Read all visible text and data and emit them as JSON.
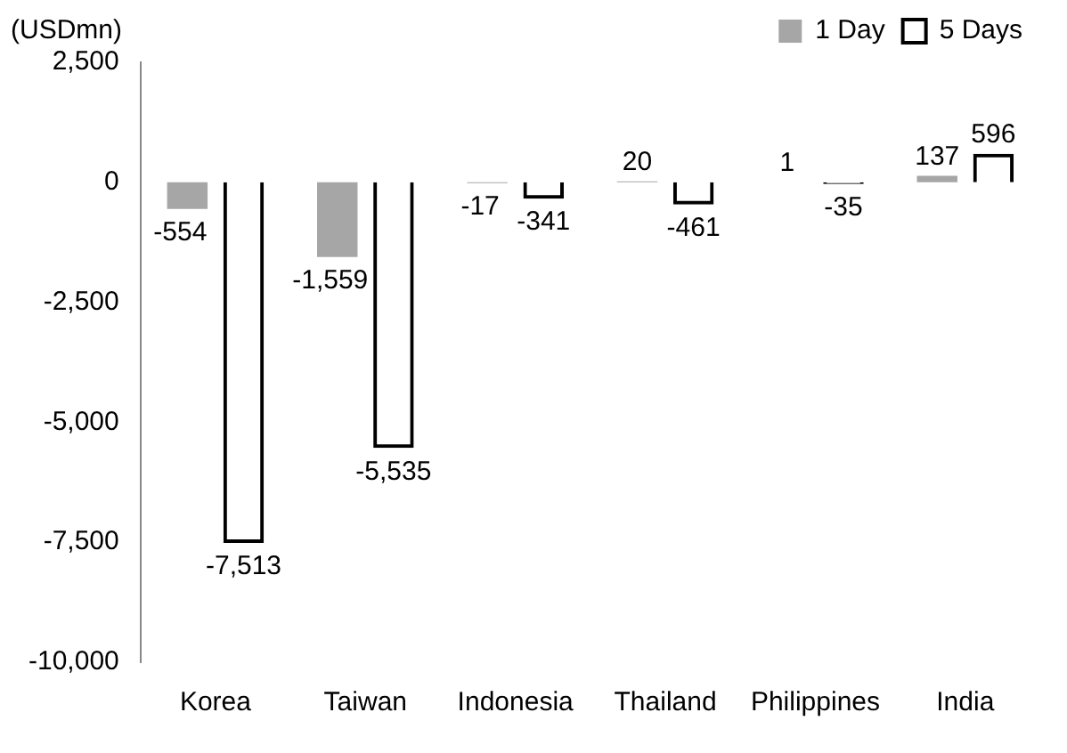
{
  "chart_data": {
    "type": "bar",
    "ylabel": "(USDmn)",
    "categories": [
      "Korea",
      "Taiwan",
      "Indonesia",
      "Thailand",
      "Philippines",
      "India"
    ],
    "series": [
      {
        "name": "1 Day",
        "color": "#a6a6a6",
        "values": [
          -554,
          -1559,
          -17,
          20,
          1,
          137
        ],
        "value_labels": [
          "-554",
          "-1,559",
          "-17",
          "20",
          "1",
          "137"
        ]
      },
      {
        "name": "5 Days",
        "color": "#000000",
        "values": [
          -7513,
          -5535,
          -341,
          -461,
          -35,
          596
        ],
        "value_labels": [
          "-7,513",
          "-5,535",
          "-341",
          "-461",
          "-35",
          "596"
        ]
      }
    ],
    "ylim": [
      -10000,
      2500
    ],
    "yticks": [
      {
        "value": -10000,
        "label": "-10,000"
      },
      {
        "value": -7500,
        "label": "-7,500"
      },
      {
        "value": -5000,
        "label": "-5,000"
      },
      {
        "value": -2500,
        "label": "-2,500"
      },
      0,
      {
        "value": 2500,
        "label": "2,500"
      }
    ],
    "grid": false,
    "legend": "top right"
  }
}
